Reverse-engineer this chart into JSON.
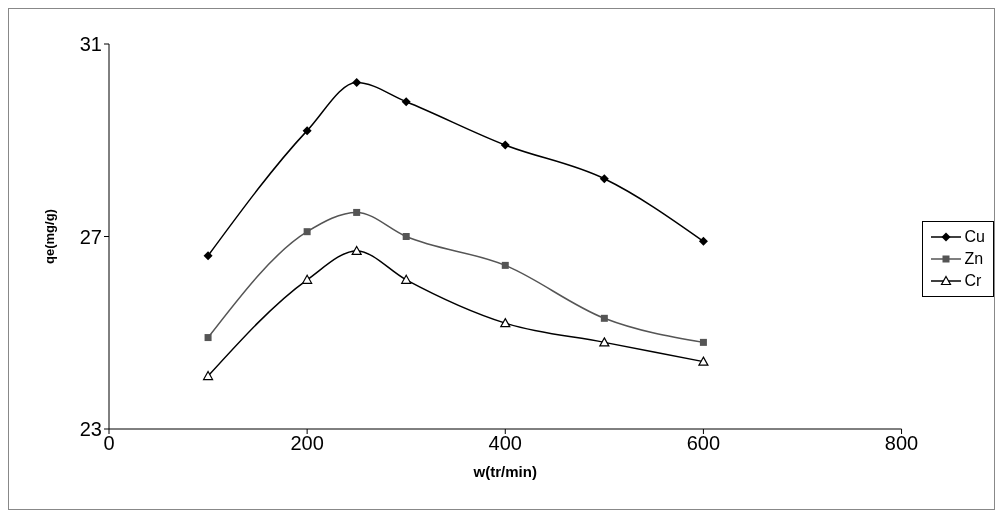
{
  "chart_data": {
    "type": "line",
    "xlabel": "w(tr/min)",
    "ylabel": "qe(mg/g)",
    "x": [
      100,
      200,
      250,
      300,
      400,
      500,
      600
    ],
    "series": [
      {
        "name": "Cu",
        "color": "#000000",
        "marker": "diamond",
        "values": [
          26.6,
          29.2,
          30.2,
          29.8,
          28.9,
          28.2,
          26.9
        ]
      },
      {
        "name": "Zn",
        "color": "#555555",
        "marker": "square",
        "values": [
          24.9,
          27.1,
          27.5,
          27.0,
          26.4,
          25.3,
          24.8
        ]
      },
      {
        "name": "Cr",
        "color": "#000000",
        "marker": "triangle",
        "values": [
          24.1,
          26.1,
          26.7,
          26.1,
          25.2,
          24.8,
          24.4
        ]
      }
    ],
    "xlim": [
      0,
      800
    ],
    "xticks": [
      0,
      200,
      400,
      600,
      800
    ],
    "ylim": [
      23,
      31
    ],
    "yticks": [
      23,
      27,
      31
    ],
    "grid": false,
    "legend": "right",
    "line_style": "solid"
  }
}
